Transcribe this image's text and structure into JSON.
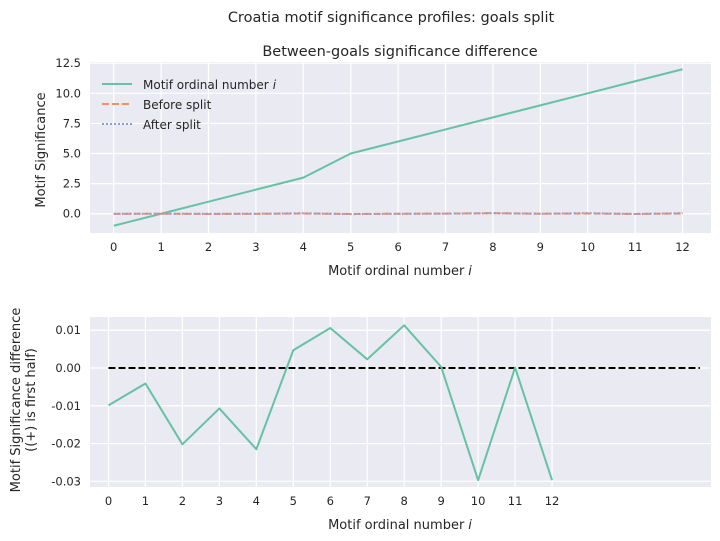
{
  "figure": {
    "suptitle": "Croatia motif significance profiles: goals split"
  },
  "chart_data": [
    {
      "type": "line",
      "title": "Between-goals significance difference",
      "xlabel": "Motif ordinal number",
      "xlabel_var": "i",
      "ylabel": "Motif Significance",
      "xlim": [
        -0.5,
        12.6
      ],
      "ylim": [
        -1.6,
        12.6
      ],
      "xticks": [
        0,
        1,
        2,
        3,
        4,
        5,
        6,
        7,
        8,
        9,
        10,
        11,
        12
      ],
      "yticks": [
        0.0,
        2.5,
        5.0,
        7.5,
        10.0,
        12.5
      ],
      "ytick_labels": [
        "0.0",
        "2.5",
        "5.0",
        "7.5",
        "10.0",
        "12.5"
      ],
      "grid": true,
      "legend_position": "top-left",
      "series": [
        {
          "name": "Motif ordinal number",
          "name_var": "i",
          "color": "#66c2a5",
          "style": "solid",
          "x": [
            0,
            1,
            2,
            3,
            4,
            5,
            6,
            7,
            8,
            9,
            10,
            11,
            12
          ],
          "values": [
            -1,
            0,
            1,
            2,
            3,
            5,
            6,
            7,
            8,
            9,
            10,
            11,
            12
          ]
        },
        {
          "name": "Before split",
          "color": "#fc8d62",
          "style": "dashed",
          "x": [
            0,
            1,
            2,
            3,
            4,
            5,
            6,
            7,
            8,
            9,
            10,
            11,
            12
          ],
          "values": [
            -0.01,
            0.0,
            -0.02,
            -0.01,
            0.02,
            -0.02,
            0.0,
            0.01,
            0.05,
            0.0,
            0.02,
            -0.02,
            0.02
          ]
        },
        {
          "name": "After split",
          "color": "#8da0cb",
          "style": "dotted",
          "x": [
            0,
            1,
            2,
            3,
            4,
            5,
            6,
            7,
            8,
            9,
            10,
            11,
            12
          ],
          "values": [
            0.0,
            0.0,
            0.0,
            0.0,
            0.04,
            -0.03,
            -0.01,
            0.01,
            0.04,
            0.0,
            0.05,
            -0.02,
            0.05
          ]
        }
      ]
    },
    {
      "type": "line",
      "title": "",
      "xlabel": "Motif ordinal number",
      "xlabel_var": "i",
      "ylabel": "Motif Significance difference",
      "ylabel2": "((+) is first half)",
      "xlim": [
        -0.5,
        16.3
      ],
      "ylim": [
        -0.0315,
        0.0135
      ],
      "xticks": [
        0,
        1,
        2,
        3,
        4,
        5,
        6,
        7,
        8,
        9,
        10,
        11,
        12
      ],
      "yticks": [
        -0.03,
        -0.02,
        -0.01,
        0.0,
        0.01
      ],
      "ytick_labels": [
        "-0.03",
        "-0.02",
        "-0.01",
        "0.00",
        "0.01"
      ],
      "grid": true,
      "series": [
        {
          "color": "#66c2a5",
          "style": "solid",
          "x": [
            0,
            1,
            2,
            3,
            4,
            5,
            6,
            7,
            8,
            9,
            10,
            11,
            12
          ],
          "values": [
            -0.0099,
            -0.0041,
            -0.0202,
            -0.0107,
            -0.0215,
            0.0047,
            0.0106,
            0.0023,
            0.0113,
            0.0003,
            -0.0297,
            0.0001,
            -0.0297
          ]
        }
      ],
      "reference_line": {
        "y": 0.0,
        "x_range": [
          0,
          16
        ],
        "color": "#000000",
        "style": "dashed"
      }
    }
  ]
}
